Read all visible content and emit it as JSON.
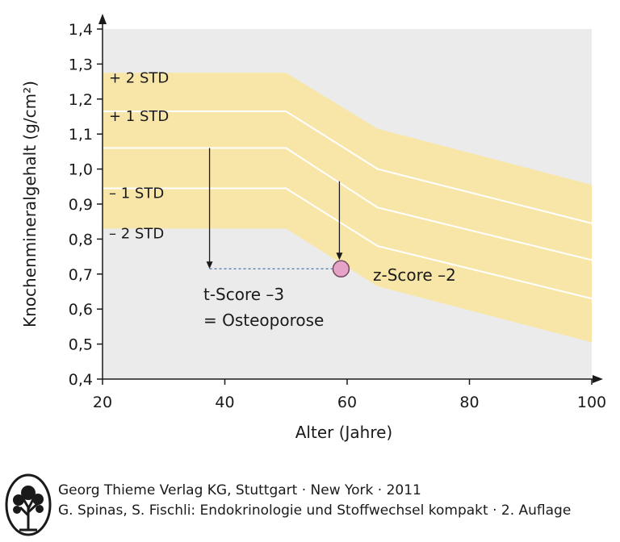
{
  "chart_data": {
    "type": "area",
    "xlabel": "Alter (Jahre)",
    "ylabel": "Knochenmineralgehalt (g/cm²)",
    "xlim": [
      20,
      100
    ],
    "ylim": [
      0.4,
      1.4
    ],
    "xticks": [
      20,
      40,
      60,
      80,
      100
    ],
    "yticks": [
      0.4,
      0.5,
      0.6,
      0.7,
      0.8,
      0.9,
      1.0,
      1.1,
      1.2,
      1.3,
      1.4
    ],
    "decimal_separator": ",",
    "grid": false,
    "colors": {
      "band": "#f8e6a8",
      "plot_bg": "#ebebeb",
      "lines": "#ffffff",
      "marker": "#e7a3c7",
      "guide": "#5b7fb8"
    },
    "band_x": [
      20,
      50,
      65,
      100
    ],
    "series": [
      {
        "name": "+ 2 STD",
        "values": [
          1.275,
          1.275,
          1.115,
          0.955
        ]
      },
      {
        "name": "+ 1 STD",
        "values": [
          1.165,
          1.165,
          1.0,
          0.845
        ]
      },
      {
        "name": "",
        "values": [
          1.06,
          1.06,
          0.89,
          0.74
        ]
      },
      {
        "name": "– 1 STD",
        "values": [
          0.945,
          0.945,
          0.78,
          0.63
        ]
      },
      {
        "name": "– 2 STD",
        "values": [
          0.83,
          0.83,
          0.665,
          0.505
        ]
      }
    ],
    "point": {
      "x": 59,
      "y": 0.715
    },
    "annotations": {
      "t_score_line1": "t-Score –3",
      "t_score_line2": "= Osteoporose",
      "z_score": "z-Score –2"
    }
  },
  "footer": {
    "line1": "Georg Thieme Verlag KG, Stuttgart · New York · 2011",
    "line2": "G. Spinas, S. Fischli: Endokrinologie und Stoffwechsel kompakt · 2. Auflage"
  }
}
